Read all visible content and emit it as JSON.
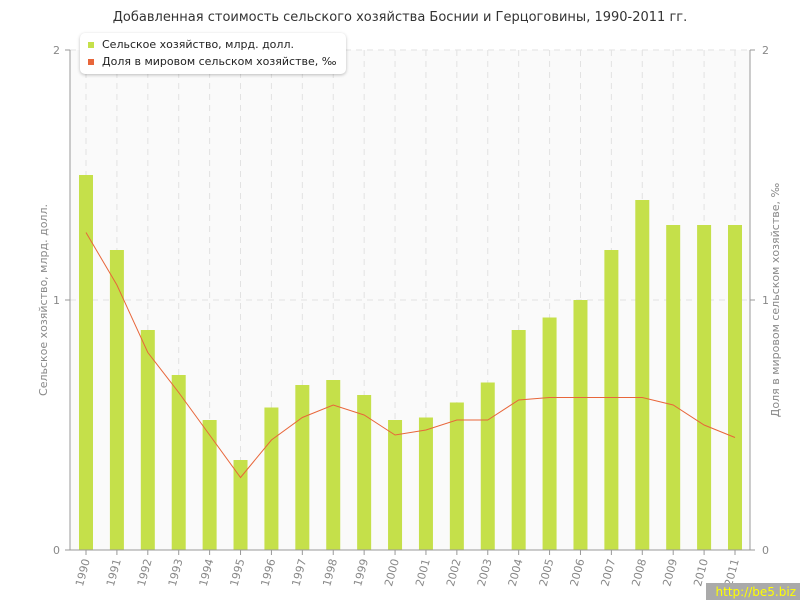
{
  "chart_data": {
    "type": "bar+line",
    "title": "Добавленная стоимость сельского хозяйства Боснии и Герцоговины, 1990-2011 гг.",
    "ylabel": "Сельское хозяйство, млрд. долл.",
    "y2label": "Доля в мировом сельском хозяйстве, ‰",
    "ylim": [
      0,
      2
    ],
    "y2lim": [
      0,
      2
    ],
    "yticks": [
      "0",
      "1",
      "2"
    ],
    "categories": [
      "1990",
      "1991",
      "1992",
      "1993",
      "1994",
      "1995",
      "1996",
      "1997",
      "1998",
      "1999",
      "2000",
      "2001",
      "2002",
      "2003",
      "2004",
      "2005",
      "2006",
      "2007",
      "2008",
      "2009",
      "2010",
      "2011"
    ],
    "series": [
      {
        "name": "Сельское хозяйство, млрд. долл.",
        "type": "bar",
        "color": "#c5e04a",
        "values": [
          1.5,
          1.2,
          0.88,
          0.7,
          0.52,
          0.36,
          0.57,
          0.66,
          0.68,
          0.62,
          0.52,
          0.53,
          0.59,
          0.67,
          0.88,
          0.93,
          1.0,
          1.2,
          1.4,
          1.3,
          1.3,
          1.3
        ]
      },
      {
        "name": "Доля в мировом сельском хозяйстве, ‰",
        "type": "line",
        "color": "#e8663a",
        "values": [
          1.27,
          1.06,
          0.79,
          0.63,
          0.46,
          0.29,
          0.44,
          0.53,
          0.58,
          0.54,
          0.46,
          0.48,
          0.52,
          0.52,
          0.6,
          0.61,
          0.61,
          0.61,
          0.61,
          0.58,
          0.5,
          0.45
        ]
      }
    ],
    "grid": true,
    "legend": "top-left"
  },
  "watermark": "http://be5.biz"
}
